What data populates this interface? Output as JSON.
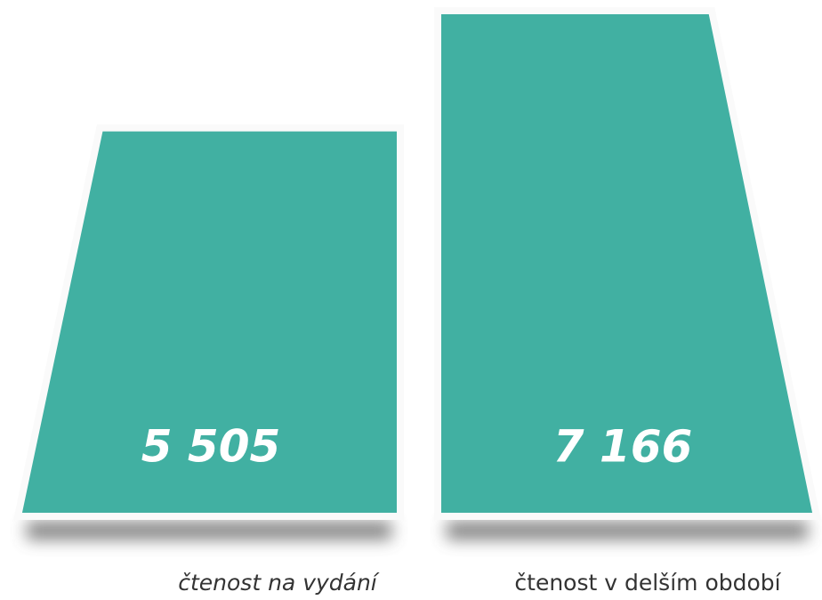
{
  "chart_data": {
    "type": "bar",
    "categories": [
      "čtenost na vydání",
      "čtenost v delším období"
    ],
    "values": [
      5505,
      7166
    ],
    "value_labels": [
      "5 505",
      "7 166"
    ],
    "color": "#41b0a2"
  }
}
